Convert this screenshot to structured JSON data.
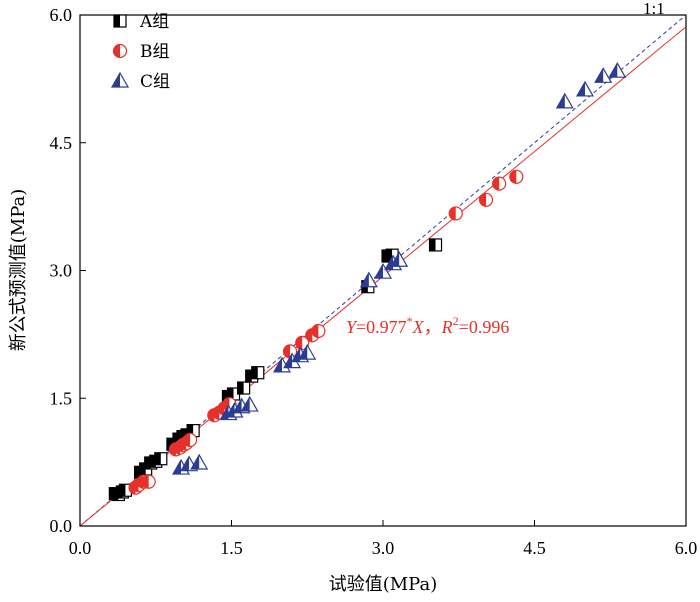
{
  "chart_data": {
    "type": "scatter",
    "xlabel": "试验值(MPa)",
    "ylabel": "新公式预测值(MPa)",
    "xlim": [
      0,
      6
    ],
    "ylim": [
      0,
      6
    ],
    "x_ticks": [
      "0.0",
      "1.5",
      "3.0",
      "4.5",
      "6.0"
    ],
    "y_ticks": [
      "0.0",
      "1.5",
      "3.0",
      "4.5",
      "6.0"
    ],
    "grid": false,
    "legend_position": "top-left",
    "annotation": {
      "y_sym": "Y",
      "eq": "=0.977",
      "star": "*",
      "x_sym": "X",
      "sep": "，",
      "r_sym": "R",
      "r_sup": "2",
      "r_val": "=0.996"
    },
    "reference_line_label": "1:1",
    "fit_slope": 0.977,
    "series": [
      {
        "name": "A组",
        "marker": "half-square",
        "color": "#000000",
        "points": [
          [
            0.35,
            0.38
          ],
          [
            0.38,
            0.37
          ],
          [
            0.42,
            0.4
          ],
          [
            0.45,
            0.42
          ],
          [
            0.6,
            0.63
          ],
          [
            0.65,
            0.67
          ],
          [
            0.7,
            0.74
          ],
          [
            0.75,
            0.76
          ],
          [
            0.8,
            0.79
          ],
          [
            0.92,
            0.96
          ],
          [
            0.98,
            1.02
          ],
          [
            1.02,
            1.05
          ],
          [
            1.06,
            1.07
          ],
          [
            1.12,
            1.12
          ],
          [
            1.47,
            1.52
          ],
          [
            1.52,
            1.55
          ],
          [
            1.62,
            1.62
          ],
          [
            1.7,
            1.76
          ],
          [
            1.76,
            1.8
          ],
          [
            2.85,
            2.81
          ],
          [
            3.05,
            3.17
          ],
          [
            3.09,
            3.18
          ],
          [
            3.52,
            3.3
          ]
        ]
      },
      {
        "name": "B组",
        "marker": "half-circle",
        "color": "#e8302a",
        "points": [
          [
            0.55,
            0.45
          ],
          [
            0.58,
            0.48
          ],
          [
            0.63,
            0.52
          ],
          [
            0.68,
            0.52
          ],
          [
            0.95,
            0.9
          ],
          [
            0.99,
            0.92
          ],
          [
            1.02,
            0.95
          ],
          [
            1.05,
            0.97
          ],
          [
            1.09,
            1.01
          ],
          [
            1.33,
            1.3
          ],
          [
            1.38,
            1.33
          ],
          [
            1.43,
            1.38
          ],
          [
            1.48,
            1.43
          ],
          [
            2.08,
            2.05
          ],
          [
            2.2,
            2.15
          ],
          [
            2.3,
            2.24
          ],
          [
            2.36,
            2.29
          ],
          [
            3.72,
            3.67
          ],
          [
            4.02,
            3.83
          ],
          [
            4.15,
            4.02
          ],
          [
            4.32,
            4.1
          ]
        ]
      },
      {
        "name": "C组",
        "marker": "half-triangle",
        "color": "#2b3d93",
        "points": [
          [
            1.0,
            0.68
          ],
          [
            1.08,
            0.72
          ],
          [
            1.18,
            0.74
          ],
          [
            1.47,
            1.32
          ],
          [
            1.53,
            1.35
          ],
          [
            1.6,
            1.4
          ],
          [
            1.68,
            1.42
          ],
          [
            2.0,
            1.88
          ],
          [
            2.1,
            1.93
          ],
          [
            2.18,
            2.0
          ],
          [
            2.25,
            2.03
          ],
          [
            2.86,
            2.88
          ],
          [
            3.0,
            2.98
          ],
          [
            3.1,
            3.08
          ],
          [
            3.16,
            3.12
          ],
          [
            4.8,
            4.98
          ],
          [
            5.0,
            5.12
          ],
          [
            5.18,
            5.28
          ],
          [
            5.32,
            5.34
          ]
        ]
      }
    ]
  }
}
